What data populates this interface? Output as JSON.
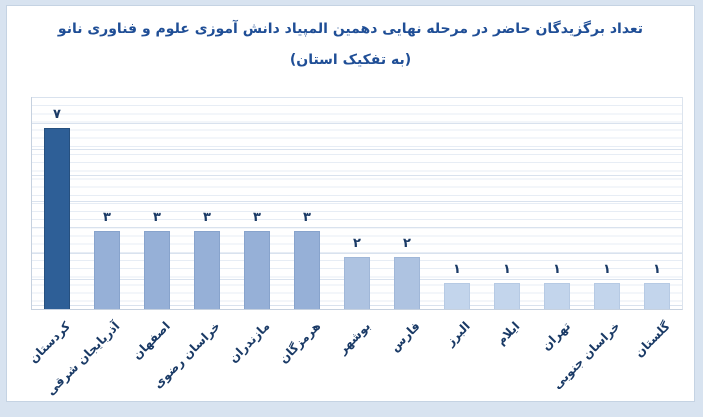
{
  "title": {
    "line1": "تعداد برگزیدگان حاضر در مرحله نهایی دهمین المپیاد دانش آموزی علوم و فناوری نانو",
    "line2": "(به تفکیک استان)"
  },
  "chart_data": {
    "type": "bar",
    "title": "تعداد برگزیدگان حاضر در مرحله نهایی دهمین المپیاد دانش آموزی علوم و فناوری نانو (به تفکیک استان)",
    "categories": [
      "کردستان",
      "آذربایجان شرقی",
      "اصفهان",
      "خراسان رضوی",
      "مازندران",
      "هرمزگان",
      "بوشهر",
      "فارس",
      "البرز",
      "ایلام",
      "تهران",
      "خراسان جنوبی",
      "گلستان"
    ],
    "values": [
      7,
      3,
      3,
      3,
      3,
      3,
      2,
      2,
      1,
      1,
      1,
      1,
      1
    ],
    "value_labels": [
      "٧",
      "٣",
      "٣",
      "٣",
      "٣",
      "٣",
      "٢",
      "٢",
      "١",
      "١",
      "١",
      "١",
      "١"
    ],
    "xlabel": "",
    "ylabel": "",
    "ylim": [
      0,
      7
    ],
    "grid": "faint horizontal minor gridlines",
    "legend": "none",
    "bar_color_by_value": {
      "7": "#2E5F97",
      "3": "#96B0D7",
      "2": "#AEC3E1",
      "1": "#C3D5EC"
    },
    "bar_border_by_value": {
      "7": "#26507F",
      "3": "#87A3CC",
      "2": "#A0B7D8",
      "1": "#B6CAE4"
    }
  },
  "colors": {
    "page_background": "#D8E3F0",
    "panel_background": "#FFFFFF",
    "panel_border": "#C5D3E3",
    "title_text": "#1F4E96",
    "value_label_text": "#1A3A66",
    "category_label_text": "#1A3A66",
    "gridline_minor": "#E7EDF5",
    "gridline_unit": "#D9E2EE",
    "axis_line": "#C6D1DF"
  }
}
